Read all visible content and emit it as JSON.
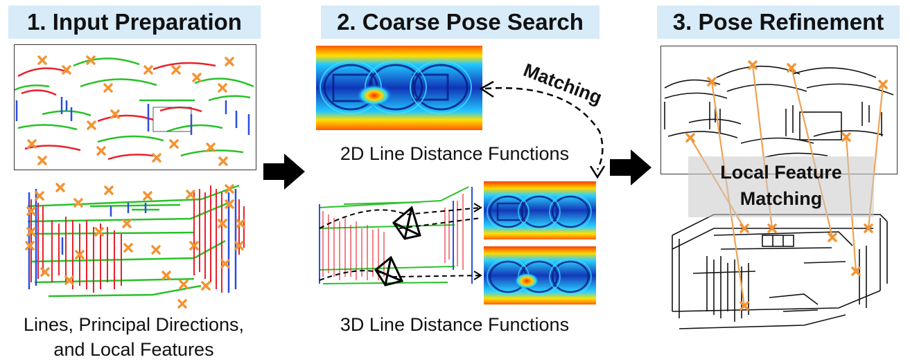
{
  "stages": [
    {
      "title": "1. Input Preparation",
      "caption_lines": [
        "Lines, Principal Directions,",
        "and Local Features"
      ]
    },
    {
      "title": "2. Coarse Pose Search",
      "caption_top": "2D Line Distance Functions",
      "caption_bottom": "3D Line Distance Functions",
      "matching_label": "Matching"
    },
    {
      "title": "3. Pose Refinement",
      "overlay_lines": [
        "Local Feature",
        "Matching"
      ]
    }
  ],
  "colors": {
    "title_bg": "#d7ebf9",
    "line_red": "#e8202a",
    "line_green": "#27c227",
    "line_blue": "#2a4de0",
    "feature_orange": "#f29433",
    "match_orange": "#f0a050",
    "arrow": "#000000"
  },
  "icons": [
    "camera-frustum-icon",
    "right-arrow-icon",
    "cross-marker-icon"
  ]
}
